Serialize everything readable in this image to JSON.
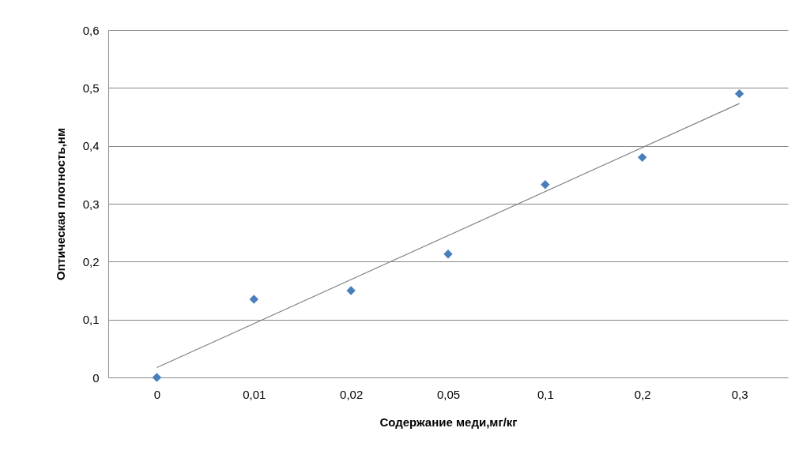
{
  "chart_data": {
    "type": "scatter",
    "xlabel": "Содержание меди,мг/кг",
    "ylabel": "Оптическая плотность,нм",
    "categories": [
      "0",
      "0,01",
      "0,02",
      "0,05",
      "0,1",
      "0,2",
      "0,3"
    ],
    "series": [
      {
        "color": "#4a7ebb",
        "marker": "diamond",
        "values": [
          0,
          0.135,
          0.15,
          0.213,
          0.333,
          0.38,
          0.49
        ]
      },
      {
        "type": "line",
        "color": "#808080",
        "x": [
          "0",
          "0,3"
        ],
        "values": [
          0.017,
          0.473
        ]
      }
    ],
    "ylim": [
      0,
      0.6
    ],
    "yticks": [
      0,
      {
        "value": 0.1,
        "label": "0,1"
      },
      {
        "value": 0.2,
        "label": "0,2"
      },
      {
        "value": 0.3,
        "label": "0,3"
      },
      {
        "value": 0.4,
        "label": "0,4"
      },
      {
        "value": 0.5,
        "label": "0,5"
      },
      {
        "value": 0.6,
        "label": "0,6"
      }
    ],
    "grid": "y",
    "line_style": "solid"
  }
}
